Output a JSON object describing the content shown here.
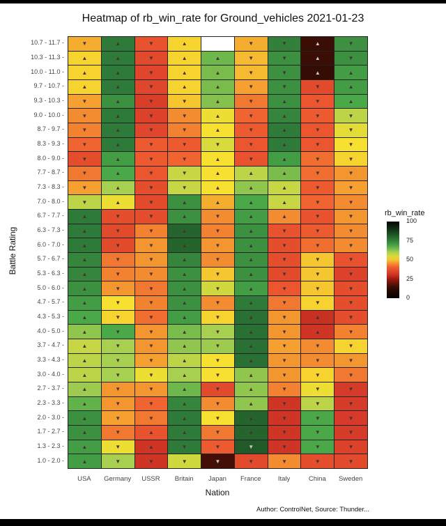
{
  "chart_data": {
    "type": "heatmap",
    "title": "Heatmap of rb_win_rate for Ground_vehicles 2021-01-23",
    "xlabel": "Nation",
    "ylabel": "Battle Rating",
    "x_categories": [
      "USA",
      "Germany",
      "USSR",
      "Britain",
      "Japan",
      "France",
      "Italy",
      "China",
      "Sweden"
    ],
    "y_categories": [
      "10.7 - 11.7",
      "10.3 - 11.3",
      "10.0 - 11.0",
      "9.7 - 10.7",
      "9.3 - 10.3",
      "9.0 - 10.0",
      "8.7 - 9.7",
      "8.3 - 9.3",
      "8.0 - 9.0",
      "7.7 - 8.7",
      "7.3 - 8.3",
      "7.0 - 8.0",
      "6.7 - 7.7",
      "6.3 - 7.3",
      "6.0 - 7.0",
      "5.7 - 6.7",
      "5.3 - 6.3",
      "5.0 - 6.0",
      "4.7 - 5.7",
      "4.3 - 5.3",
      "4.0 - 5.0",
      "3.7 - 4.7",
      "3.3 - 4.3",
      "3.0 - 4.0",
      "2.7 - 3.7",
      "2.3 - 3.3",
      "2.0 - 3.0",
      "1.7 - 2.7",
      "1.3 - 2.3",
      "1.0 - 2.0"
    ],
    "values": [
      [
        48,
        76,
        38,
        51,
        null,
        48,
        75,
        15,
        72
      ],
      [
        51,
        76,
        36,
        51,
        65,
        49,
        72,
        15,
        72
      ],
      [
        51,
        76,
        35,
        51,
        64,
        49,
        72,
        14,
        70
      ],
      [
        51,
        76,
        35,
        51,
        64,
        47,
        72,
        36,
        70
      ],
      [
        47,
        72,
        33,
        50,
        63,
        43,
        72,
        39,
        68
      ],
      [
        45,
        76,
        34,
        45,
        53,
        41,
        74,
        40,
        58
      ],
      [
        44,
        76,
        35,
        44,
        52,
        40,
        76,
        39,
        54
      ],
      [
        41,
        76,
        40,
        40,
        55,
        39,
        76,
        39,
        52
      ],
      [
        37,
        70,
        40,
        41,
        52,
        38,
        70,
        42,
        51
      ],
      [
        43,
        68,
        39,
        57,
        52,
        58,
        64,
        42,
        46
      ],
      [
        47,
        60,
        37,
        57,
        52,
        62,
        57,
        40,
        47
      ],
      [
        58,
        53,
        36,
        72,
        48,
        68,
        57,
        41,
        45
      ],
      [
        76,
        37,
        37,
        72,
        45,
        70,
        45,
        38,
        46
      ],
      [
        76,
        36,
        44,
        80,
        44,
        72,
        38,
        40,
        45
      ],
      [
        76,
        36,
        46,
        80,
        46,
        72,
        37,
        42,
        45
      ],
      [
        74,
        43,
        46,
        74,
        45,
        72,
        37,
        50,
        38
      ],
      [
        74,
        44,
        45,
        72,
        50,
        72,
        36,
        50,
        34
      ],
      [
        72,
        46,
        43,
        72,
        56,
        70,
        39,
        50,
        37
      ],
      [
        70,
        52,
        44,
        72,
        45,
        76,
        43,
        51,
        37
      ],
      [
        68,
        51,
        42,
        70,
        51,
        78,
        46,
        30,
        37
      ],
      [
        62,
        68,
        46,
        64,
        60,
        78,
        46,
        31,
        44
      ],
      [
        57,
        60,
        46,
        62,
        61,
        78,
        47,
        45,
        51
      ],
      [
        58,
        60,
        47,
        58,
        52,
        78,
        46,
        45,
        46
      ],
      [
        58,
        60,
        53,
        60,
        52,
        62,
        46,
        51,
        43
      ],
      [
        61,
        46,
        46,
        65,
        36,
        62,
        44,
        53,
        32
      ],
      [
        66,
        46,
        41,
        74,
        45,
        62,
        31,
        58,
        32
      ],
      [
        72,
        47,
        43,
        76,
        52,
        80,
        31,
        68,
        32
      ],
      [
        72,
        43,
        38,
        76,
        43,
        80,
        31,
        68,
        32
      ],
      [
        70,
        53,
        31,
        76,
        40,
        82,
        31,
        68,
        34
      ],
      [
        70,
        60,
        31,
        56,
        16,
        36,
        45,
        37,
        36
      ]
    ],
    "trend": [
      [
        "down",
        "up",
        "down",
        "up",
        null,
        "down",
        "down",
        "up",
        "down"
      ],
      [
        "up",
        "up",
        "down",
        "up",
        "up",
        "down",
        "down",
        "up",
        "down"
      ],
      [
        "up",
        "up",
        "down",
        "up",
        "up",
        "down",
        "down",
        "up",
        "up"
      ],
      [
        "up",
        "up",
        "down",
        "up",
        "up",
        "down",
        "down",
        "down",
        "up"
      ],
      [
        "down",
        "up",
        "down",
        "down",
        "up",
        "down",
        "up",
        "down",
        "up"
      ],
      [
        "down",
        "up",
        "down",
        "down",
        "up",
        "down",
        "up",
        "down",
        "down"
      ],
      [
        "down",
        "up",
        "down",
        "down",
        "up",
        "down",
        "up",
        "down",
        "down"
      ],
      [
        "down",
        "up",
        "down",
        "down",
        "down",
        "down",
        "up",
        "down",
        "down"
      ],
      [
        "down",
        "up",
        "down",
        "down",
        "up",
        "down",
        "up",
        "down",
        "down"
      ],
      [
        "down",
        "up",
        "down",
        "down",
        "up",
        "up",
        "up",
        "down",
        "down"
      ],
      [
        "down",
        "up",
        "down",
        "down",
        "up",
        "up",
        "up",
        "down",
        "down"
      ],
      [
        "down",
        "up",
        "down",
        "up",
        "up",
        "up",
        "up",
        "down",
        "down"
      ],
      [
        "up",
        "down",
        "down",
        "up",
        "down",
        "up",
        "up",
        "down",
        "down"
      ],
      [
        "up",
        "down",
        "down",
        "up",
        "down",
        "up",
        "down",
        "down",
        "down"
      ],
      [
        "up",
        "down",
        "down",
        "up",
        "down",
        "up",
        "down",
        "down",
        "down"
      ],
      [
        "up",
        "down",
        "down",
        "up",
        "down",
        "up",
        "down",
        "down",
        "down"
      ],
      [
        "up",
        "down",
        "down",
        "up",
        "down",
        "up",
        "down",
        "down",
        "down"
      ],
      [
        "up",
        "down",
        "down",
        "up",
        "down",
        "up",
        "down",
        "down",
        "down"
      ],
      [
        "up",
        "down",
        "down",
        "up",
        "down",
        "up",
        "down",
        "down",
        "down"
      ],
      [
        "up",
        "down",
        "down",
        "up",
        "down",
        "up",
        "down",
        "up",
        "down"
      ],
      [
        "up",
        "down",
        "down",
        "up",
        "down",
        "up",
        "down",
        "up",
        "down"
      ],
      [
        "up",
        "down",
        "down",
        "up",
        "down",
        "up",
        "down",
        "down",
        "down"
      ],
      [
        "up",
        "down",
        "down",
        "up",
        "down",
        "up",
        "down",
        "down",
        "down"
      ],
      [
        "up",
        "down",
        "down",
        "up",
        "down",
        "up",
        "down",
        "down",
        "down"
      ],
      [
        "up",
        "down",
        "down",
        "up",
        "down",
        "up",
        "down",
        "down",
        "down"
      ],
      [
        "up",
        "down",
        "down",
        "up",
        "down",
        "up",
        "down",
        "down",
        "down"
      ],
      [
        "up",
        "down",
        "down",
        "up",
        "down",
        "up",
        "down",
        "down",
        "down"
      ],
      [
        "up",
        "down",
        "up",
        "up",
        "down",
        "up",
        "down",
        "down",
        "down"
      ],
      [
        "up",
        "down",
        "up",
        "down",
        "down",
        "down",
        "down",
        "down",
        "down"
      ],
      [
        "up",
        "down",
        "down",
        "down",
        "down",
        "down",
        "down",
        "down",
        "down"
      ]
    ],
    "legend": {
      "title": "rb_win_rate",
      "ticks": [
        "100",
        "75",
        "50",
        "25",
        "0"
      ],
      "range": [
        0,
        100
      ],
      "placement": "right"
    },
    "colorscale": [
      "#000000",
      "#3a0e05",
      "#a01a10",
      "#d63a28",
      "#ee5a30",
      "#f5a030",
      "#f7e030",
      "#a8d050",
      "#4aa848",
      "#2e7a38",
      "#1a4a20",
      "#000000"
    ],
    "caption": "Author: ControlNet, Source: Thunder..."
  }
}
